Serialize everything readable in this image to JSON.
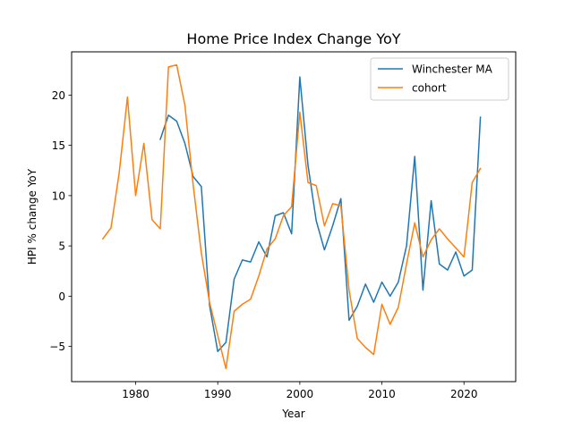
{
  "chart_data": {
    "type": "line",
    "title": "Home Price Index Change YoY",
    "xlabel": "Year",
    "ylabel": "HPI % change YoY",
    "xlim": [
      1972.2,
      2026.3
    ],
    "ylim": [
      -8.5,
      24.3
    ],
    "xticks": [
      1980,
      1990,
      2000,
      2010,
      2020
    ],
    "yticks": [
      -5,
      0,
      5,
      10,
      15,
      20
    ],
    "grid": false,
    "legend_position": "upper right",
    "series": [
      {
        "name": "Winchester MA",
        "color": "#1f77b4",
        "x": [
          1983,
          1984,
          1985,
          1986,
          1987,
          1988,
          1989,
          1990,
          1991,
          1992,
          1993,
          1994,
          1995,
          1996,
          1997,
          1998,
          1999,
          2000,
          2001,
          2002,
          2003,
          2004,
          2005,
          2006,
          2007,
          2008,
          2009,
          2010,
          2011,
          2012,
          2013,
          2014,
          2015,
          2016,
          2017,
          2018,
          2019,
          2020,
          2021,
          2022
        ],
        "y": [
          15.6,
          18.0,
          17.4,
          15.2,
          11.9,
          10.9,
          -0.9,
          -5.5,
          -4.6,
          1.7,
          3.6,
          3.4,
          5.4,
          3.9,
          8.0,
          8.3,
          6.2,
          21.8,
          13.0,
          7.5,
          4.6,
          7.0,
          9.7,
          -2.4,
          -1.0,
          1.2,
          -0.6,
          1.4,
          0.0,
          1.4,
          5.0,
          13.9,
          0.6,
          9.5,
          3.2,
          2.6,
          4.4,
          2.0,
          2.6,
          17.8
        ]
      },
      {
        "name": "cohort",
        "color": "#ff7f0e",
        "x": [
          1976,
          1977,
          1978,
          1979,
          1980,
          1981,
          1982,
          1983,
          1984,
          1985,
          1986,
          1987,
          1988,
          1989,
          1990,
          1991,
          1992,
          1993,
          1994,
          1995,
          1996,
          1997,
          1998,
          1999,
          2000,
          2001,
          2002,
          2003,
          2004,
          2005,
          2006,
          2007,
          2008,
          2009,
          2010,
          2011,
          2012,
          2013,
          2014,
          2015,
          2016,
          2017,
          2018,
          2019,
          2020,
          2021,
          2022
        ],
        "y": [
          5.7,
          6.8,
          12.3,
          19.8,
          10.0,
          15.2,
          7.6,
          6.7,
          22.8,
          23.0,
          19.0,
          11.1,
          4.3,
          -0.6,
          -3.9,
          -7.2,
          -1.5,
          -0.8,
          -0.3,
          2.0,
          4.7,
          5.7,
          8.0,
          8.9,
          18.3,
          11.3,
          11.0,
          7.0,
          9.2,
          9.0,
          0.6,
          -4.2,
          -5.1,
          -5.8,
          -0.8,
          -2.8,
          -1.1,
          3.2,
          7.3,
          3.9,
          5.6,
          6.7,
          5.7,
          4.8,
          3.9,
          11.3,
          12.7
        ]
      }
    ]
  }
}
